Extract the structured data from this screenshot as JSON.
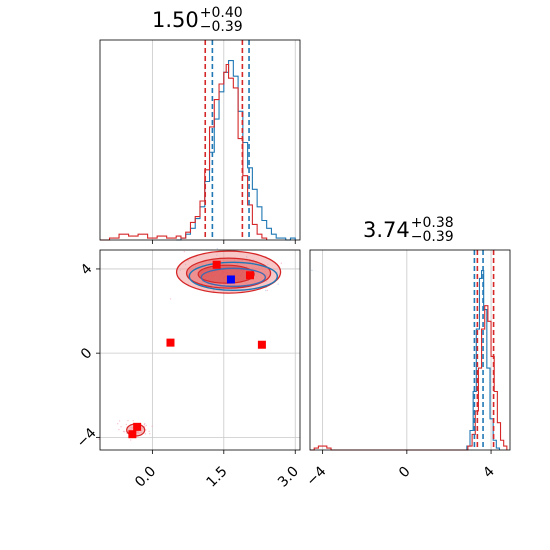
{
  "chart_data": {
    "type": "corner",
    "colors": {
      "red": "#d62728",
      "blue": "#1f77b4",
      "grid": "#c8c8c8",
      "fill": "#f08080"
    },
    "parameters": [
      {
        "title_value": "1.50",
        "title_plus": "+0.40",
        "title_minus": "−0.39",
        "xlim": [
          -1.1,
          3.1
        ],
        "xticks": [
          0.0,
          1.5,
          3.0
        ],
        "xtick_labels": [
          "0.0",
          "1.5",
          "3.0"
        ],
        "red_quantiles": [
          1.11,
          1.89
        ],
        "blue_quantiles": [
          1.26,
          2.03
        ]
      },
      {
        "title_value": "3.74",
        "title_plus": "+0.38",
        "title_minus": "−0.39",
        "xlim": [
          -4.6,
          4.9
        ],
        "xticks": [
          -4,
          0,
          4
        ],
        "xtick_labels": [
          "−4",
          "0",
          "4"
        ],
        "red_quantiles": [
          3.35,
          4.12
        ],
        "blue_quantiles": [
          3.21,
          3.62
        ]
      }
    ],
    "joint": {
      "ylim": [
        -4.6,
        4.9
      ],
      "yticks": [
        -4,
        0,
        4
      ],
      "ytick_labels": [
        "−4",
        "0",
        "4"
      ],
      "red_markers": [
        {
          "x": 1.35,
          "y": 4.2
        },
        {
          "x": 2.05,
          "y": 3.7
        },
        {
          "x": 0.38,
          "y": 0.5
        },
        {
          "x": 2.3,
          "y": 0.4
        },
        {
          "x": -0.32,
          "y": -3.5
        },
        {
          "x": -0.42,
          "y": -3.85
        }
      ],
      "blue_markers": [
        {
          "x": 1.65,
          "y": 3.5
        }
      ]
    },
    "hist1_red": [
      [
        -1.1,
        0
      ],
      [
        -0.9,
        0.01
      ],
      [
        -0.7,
        0.03
      ],
      [
        -0.5,
        0.02
      ],
      [
        -0.3,
        0.03
      ],
      [
        -0.1,
        0.01
      ],
      [
        0.1,
        0.02
      ],
      [
        0.3,
        0.01
      ],
      [
        0.5,
        0.02
      ],
      [
        0.6,
        0.01
      ],
      [
        0.7,
        0.04
      ],
      [
        0.8,
        0.09
      ],
      [
        0.9,
        0.12
      ],
      [
        1.0,
        0.2
      ],
      [
        1.1,
        0.36
      ],
      [
        1.2,
        0.58
      ],
      [
        1.3,
        0.72
      ],
      [
        1.4,
        0.8
      ],
      [
        1.5,
        0.86
      ],
      [
        1.55,
        0.9
      ],
      [
        1.6,
        0.83
      ],
      [
        1.7,
        0.78
      ],
      [
        1.8,
        0.52
      ],
      [
        1.9,
        0.33
      ],
      [
        2.0,
        0.18
      ],
      [
        2.1,
        0.08
      ],
      [
        2.2,
        0.03
      ],
      [
        2.3,
        0.01
      ],
      [
        2.4,
        0.0
      ]
    ],
    "hist1_blue": [
      [
        0.5,
        0
      ],
      [
        0.6,
        0.01
      ],
      [
        0.7,
        0.03
      ],
      [
        0.8,
        0.06
      ],
      [
        0.9,
        0.11
      ],
      [
        1.0,
        0.17
      ],
      [
        1.1,
        0.3
      ],
      [
        1.2,
        0.45
      ],
      [
        1.3,
        0.62
      ],
      [
        1.4,
        0.76
      ],
      [
        1.5,
        0.86
      ],
      [
        1.6,
        0.92
      ],
      [
        1.7,
        0.84
      ],
      [
        1.8,
        0.66
      ],
      [
        1.9,
        0.5
      ],
      [
        2.0,
        0.37
      ],
      [
        2.1,
        0.26
      ],
      [
        2.2,
        0.17
      ],
      [
        2.3,
        0.1
      ],
      [
        2.4,
        0.06
      ],
      [
        2.5,
        0.03
      ],
      [
        2.6,
        0.01
      ],
      [
        2.7,
        0.01
      ],
      [
        2.8,
        0.0
      ],
      [
        2.9,
        0.01
      ],
      [
        3.0,
        0.0
      ]
    ],
    "hist2_red": [
      [
        -4.6,
        0
      ],
      [
        -4.4,
        0.01
      ],
      [
        -4.2,
        0.02
      ],
      [
        -4.0,
        0.02
      ],
      [
        -3.8,
        0.01
      ],
      [
        -3.6,
        0.0
      ],
      [
        2.9,
        0.02
      ],
      [
        3.1,
        0.08
      ],
      [
        3.25,
        0.2
      ],
      [
        3.4,
        0.42
      ],
      [
        3.55,
        0.62
      ],
      [
        3.7,
        0.74
      ],
      [
        3.85,
        0.66
      ],
      [
        4.0,
        0.48
      ],
      [
        4.15,
        0.3
      ],
      [
        4.3,
        0.14
      ],
      [
        4.45,
        0.05
      ],
      [
        4.6,
        0.02
      ],
      [
        4.75,
        0.0
      ]
    ],
    "hist2_blue": [
      [
        2.7,
        0
      ],
      [
        2.85,
        0.02
      ],
      [
        3.0,
        0.1
      ],
      [
        3.15,
        0.3
      ],
      [
        3.3,
        0.62
      ],
      [
        3.45,
        0.88
      ],
      [
        3.55,
        0.92
      ],
      [
        3.65,
        0.72
      ],
      [
        3.8,
        0.42
      ],
      [
        3.95,
        0.16
      ],
      [
        4.1,
        0.05
      ],
      [
        4.25,
        0.01
      ],
      [
        4.4,
        0.0
      ]
    ]
  }
}
